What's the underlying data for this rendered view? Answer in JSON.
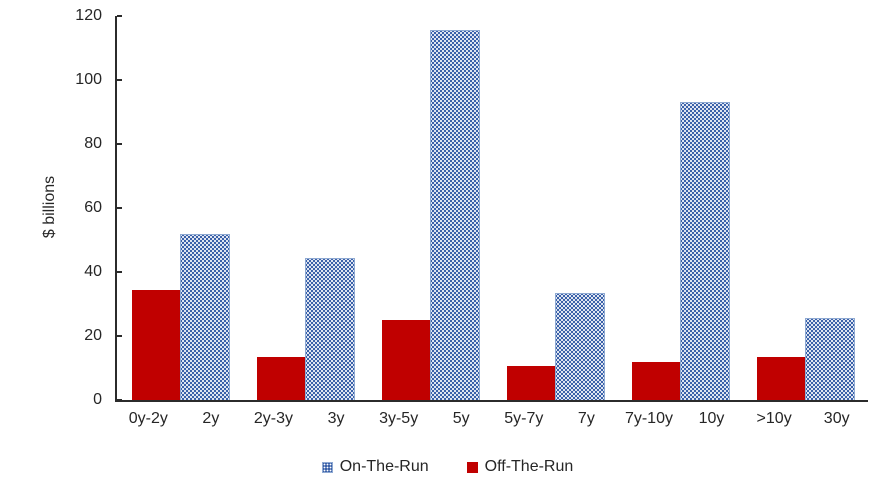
{
  "chart_data": {
    "type": "bar",
    "title": "",
    "ylabel": "$ billions",
    "xlabel": "",
    "ylim": [
      0,
      120
    ],
    "ytick_step": 20,
    "grid": false,
    "legend_position": "bottom-center",
    "categories": [
      "0y-2y",
      "2y",
      "2y-3y",
      "3y",
      "3y-5y",
      "5y",
      "5y-7y",
      "7y",
      "7y-10y",
      "10y",
      ">10y",
      "30y"
    ],
    "series": [
      {
        "name": "On-The-Run",
        "style": "dotted-pattern",
        "color": "#3B61A9",
        "pattern_dot_color": "#FFFFFF",
        "values": [
          null,
          52,
          null,
          44.5,
          null,
          115.5,
          null,
          33.5,
          null,
          93,
          null,
          25.5
        ]
      },
      {
        "name": "Off-The-Run",
        "style": "solid",
        "color": "#C00000",
        "values": [
          34.5,
          null,
          13.5,
          null,
          25,
          null,
          10.5,
          null,
          12,
          null,
          13.5,
          null
        ]
      }
    ],
    "colors": {
      "axis": "#2B2B2B",
      "text": "#262626",
      "background": "#FFFFFF",
      "on_the_run_border": "#8EA9D2"
    }
  }
}
